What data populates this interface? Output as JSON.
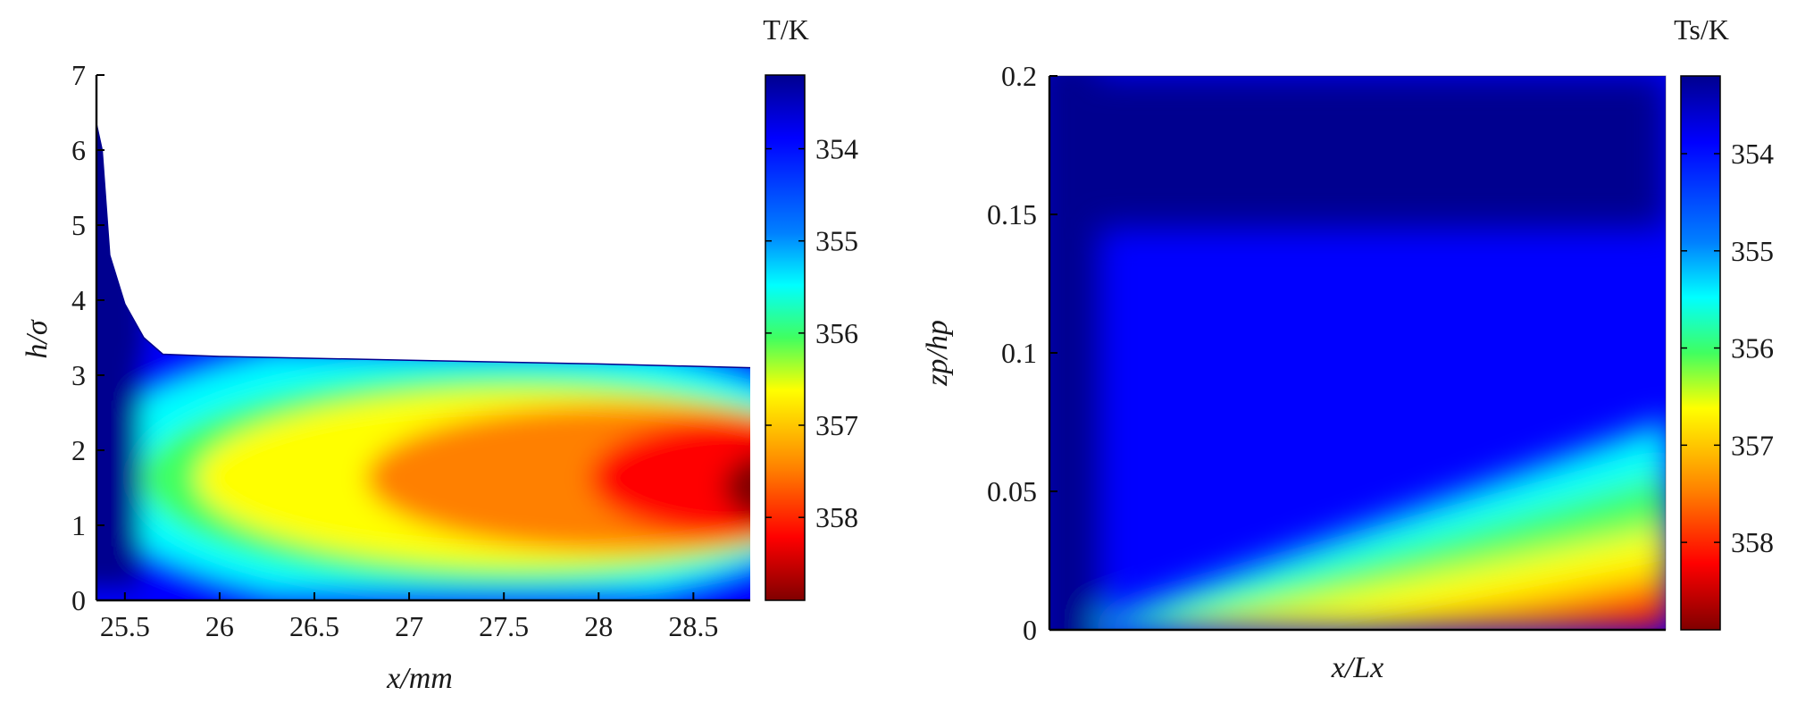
{
  "chart_data": [
    {
      "type": "heatmap",
      "xlabel": "x/mm",
      "ylabel": "h/σ",
      "xlim": [
        25.35,
        28.8
      ],
      "ylim": [
        0,
        7
      ],
      "xticks": [
        "25.5",
        "26",
        "26.5",
        "27",
        "27.5",
        "28",
        "28.5"
      ],
      "yticks": [
        "0",
        "1",
        "2",
        "3",
        "4",
        "5",
        "6",
        "7"
      ],
      "colorbar": {
        "title": "T/K",
        "ticks": [
          "354",
          "355",
          "356",
          "357",
          "358"
        ],
        "range": [
          353.2,
          358.9
        ],
        "direction": "reversed (dark blue at top, dark red at bottom)"
      },
      "colormap": "jet",
      "surface_profile": {
        "x": [
          25.35,
          25.38,
          25.42,
          25.5,
          25.6,
          25.7,
          26.0,
          27.0,
          28.0,
          28.8
        ],
        "h": [
          6.35,
          6.0,
          4.6,
          3.95,
          3.5,
          3.28,
          3.25,
          3.2,
          3.15,
          3.1
        ]
      },
      "hot_spot": {
        "x": 28.75,
        "h": 1.6,
        "T": 358.8
      },
      "description_values": {
        "wall_temperature": 353.3,
        "core_temperature_at_x_26": 356.6,
        "core_temperature_at_x_27": 357.6,
        "core_temperature_at_x_28_8": 358.8
      }
    },
    {
      "type": "heatmap",
      "xlabel": "x/Lx",
      "ylabel": "zp/hp",
      "xlim": [
        0,
        1
      ],
      "ylim": [
        0,
        0.2
      ],
      "xticks": [],
      "yticks": [
        "0",
        "0.05",
        "0.1",
        "0.15",
        "0.2"
      ],
      "colorbar": {
        "title": "Ts/K",
        "ticks": [
          "354",
          "355",
          "356",
          "357",
          "358"
        ],
        "range": [
          353.2,
          358.9
        ],
        "direction": "reversed (dark blue at top, dark red at bottom)"
      },
      "colormap": "jet",
      "field_values": {
        "top_temperature": 353.3,
        "bottom_left_temperature": 353.3,
        "bottom_right_temperature": 358.6,
        "bottom_mid_temperature": 356.6
      }
    }
  ]
}
